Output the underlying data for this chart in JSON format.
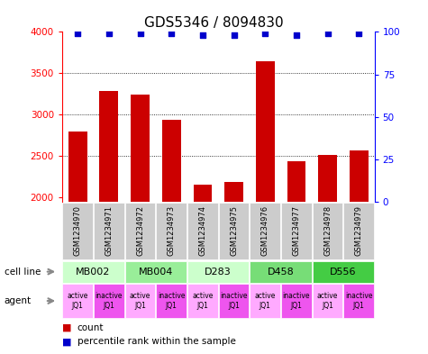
{
  "title": "GDS5346 / 8094830",
  "samples": [
    "GSM1234970",
    "GSM1234971",
    "GSM1234972",
    "GSM1234973",
    "GSM1234974",
    "GSM1234975",
    "GSM1234976",
    "GSM1234977",
    "GSM1234978",
    "GSM1234979"
  ],
  "counts": [
    2800,
    3290,
    3240,
    2940,
    2160,
    2185,
    3650,
    2440,
    2510,
    2565
  ],
  "percentiles": [
    99,
    99,
    99,
    99,
    98,
    98,
    99,
    98,
    99,
    99
  ],
  "ylim_left": [
    1950,
    4000
  ],
  "ylim_right": [
    0,
    100
  ],
  "yticks_left": [
    2000,
    2500,
    3000,
    3500,
    4000
  ],
  "yticks_right": [
    0,
    25,
    50,
    75,
    100
  ],
  "bar_color": "#cc0000",
  "dot_color": "#0000cc",
  "cell_lines": [
    {
      "label": "MB002",
      "cols": [
        0,
        1
      ],
      "color": "#ccffcc"
    },
    {
      "label": "MB004",
      "cols": [
        2,
        3
      ],
      "color": "#99ee99"
    },
    {
      "label": "D283",
      "cols": [
        4,
        5
      ],
      "color": "#ccffcc"
    },
    {
      "label": "D458",
      "cols": [
        6,
        7
      ],
      "color": "#77dd77"
    },
    {
      "label": "D556",
      "cols": [
        8,
        9
      ],
      "color": "#44cc44"
    }
  ],
  "agents": [
    {
      "label": "active\nJQ1",
      "col": 0,
      "color": "#ffaaff"
    },
    {
      "label": "inactive\nJQ1",
      "col": 1,
      "color": "#ee55ee"
    },
    {
      "label": "active\nJQ1",
      "col": 2,
      "color": "#ffaaff"
    },
    {
      "label": "inactive\nJQ1",
      "col": 3,
      "color": "#ee55ee"
    },
    {
      "label": "active\nJQ1",
      "col": 4,
      "color": "#ffaaff"
    },
    {
      "label": "inactive\nJQ1",
      "col": 5,
      "color": "#ee55ee"
    },
    {
      "label": "active\nJQ1",
      "col": 6,
      "color": "#ffaaff"
    },
    {
      "label": "inactive\nJQ1",
      "col": 7,
      "color": "#ee55ee"
    },
    {
      "label": "active\nJQ1",
      "col": 8,
      "color": "#ffaaff"
    },
    {
      "label": "inactive\nJQ1",
      "col": 9,
      "color": "#ee55ee"
    }
  ],
  "gsm_box_color": "#cccccc",
  "legend_count_color": "#cc0000",
  "legend_pct_color": "#0000cc",
  "title_fontsize": 11
}
